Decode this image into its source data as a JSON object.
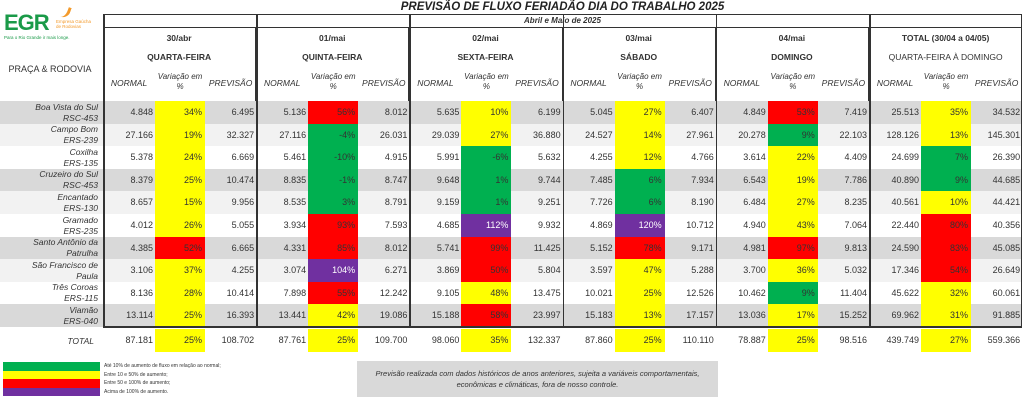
{
  "logo": {
    "name": "EGR",
    "subtitle": "Empresa Gaúcha de Rodovias",
    "tagline": "Para o Rio Grande ir mais longe."
  },
  "title": "PREVISÃO DE FLUXO FERIADÃO DIA DO TRABALHO 2025",
  "period": "Abril e Maio de 2025",
  "row_header": "PRAÇA & RODOVIA",
  "subheaders": {
    "normal": "NORMAL",
    "variation": "Variação em %",
    "forecast": "PREVISÃO"
  },
  "groups": [
    {
      "date": "30/abr",
      "weekday": "QUARTA-FEIRA"
    },
    {
      "date": "01/mai",
      "weekday": "QUINTA-FEIRA"
    },
    {
      "date": "02/mai",
      "weekday": "SEXTA-FEIRA"
    },
    {
      "date": "03/mai",
      "weekday": "SÁBADO"
    },
    {
      "date": "04/mai",
      "weekday": "DOMINGO"
    },
    {
      "date": "TOTAL (30/04 a 04/05)",
      "weekday": "QUARTA-FEIRA À DOMINGO"
    }
  ],
  "colors": {
    "g": "#00b050",
    "y": "#ffff00",
    "r": "#ff0000",
    "p": "#7030a0"
  },
  "rows": [
    {
      "name1": "Boa Vista do Sul",
      "name2": "RSC-453",
      "cells": [
        [
          "4.848",
          "34%",
          "6.495",
          "y"
        ],
        [
          "5.136",
          "56%",
          "8.012",
          "r"
        ],
        [
          "5.635",
          "10%",
          "6.199",
          "y"
        ],
        [
          "5.045",
          "27%",
          "6.407",
          "y"
        ],
        [
          "4.849",
          "53%",
          "7.419",
          "r"
        ],
        [
          "25.513",
          "35%",
          "34.532",
          "y"
        ]
      ]
    },
    {
      "name1": "Campo Bom",
      "name2": "ERS-239",
      "cells": [
        [
          "27.166",
          "19%",
          "32.327",
          "y"
        ],
        [
          "27.116",
          "-4%",
          "26.031",
          "g"
        ],
        [
          "29.039",
          "27%",
          "36.880",
          "y"
        ],
        [
          "24.527",
          "14%",
          "27.961",
          "y"
        ],
        [
          "20.278",
          "9%",
          "22.103",
          "g"
        ],
        [
          "128.126",
          "13%",
          "145.301",
          "y"
        ]
      ]
    },
    {
      "name1": "Coxilha",
      "name2": "ERS-135",
      "cells": [
        [
          "5.378",
          "24%",
          "6.669",
          "y"
        ],
        [
          "5.461",
          "-10%",
          "4.915",
          "g"
        ],
        [
          "5.991",
          "-6%",
          "5.632",
          "g"
        ],
        [
          "4.255",
          "12%",
          "4.766",
          "y"
        ],
        [
          "3.614",
          "22%",
          "4.409",
          "y"
        ],
        [
          "24.699",
          "7%",
          "26.390",
          "g"
        ]
      ]
    },
    {
      "name1": "Cruzeiro do Sul",
      "name2": "RSC-453",
      "cells": [
        [
          "8.379",
          "25%",
          "10.474",
          "y"
        ],
        [
          "8.835",
          "-1%",
          "8.747",
          "g"
        ],
        [
          "9.648",
          "1%",
          "9.744",
          "g"
        ],
        [
          "7.485",
          "6%",
          "7.934",
          "g"
        ],
        [
          "6.543",
          "19%",
          "7.786",
          "y"
        ],
        [
          "40.890",
          "9%",
          "44.685",
          "g"
        ]
      ]
    },
    {
      "name1": "Encantado",
      "name2": "ERS-130",
      "cells": [
        [
          "8.657",
          "15%",
          "9.956",
          "y"
        ],
        [
          "8.535",
          "3%",
          "8.791",
          "g"
        ],
        [
          "9.159",
          "1%",
          "9.251",
          "g"
        ],
        [
          "7.726",
          "6%",
          "8.190",
          "g"
        ],
        [
          "6.484",
          "27%",
          "8.235",
          "y"
        ],
        [
          "40.561",
          "10%",
          "44.421",
          "y"
        ]
      ]
    },
    {
      "name1": "Gramado",
      "name2": "ERS-235",
      "cells": [
        [
          "4.012",
          "26%",
          "5.055",
          "y"
        ],
        [
          "3.934",
          "93%",
          "7.593",
          "r"
        ],
        [
          "4.685",
          "112%",
          "9.932",
          "p"
        ],
        [
          "4.869",
          "120%",
          "10.712",
          "p"
        ],
        [
          "4.940",
          "43%",
          "7.064",
          "y"
        ],
        [
          "22.440",
          "80%",
          "40.356",
          "r"
        ]
      ]
    },
    {
      "name1": "Santo Antônio da",
      "name2": "Patrulha",
      "cells": [
        [
          "4.385",
          "52%",
          "6.665",
          "r"
        ],
        [
          "4.331",
          "85%",
          "8.012",
          "r"
        ],
        [
          "5.741",
          "99%",
          "11.425",
          "r"
        ],
        [
          "5.152",
          "78%",
          "9.171",
          "r"
        ],
        [
          "4.981",
          "97%",
          "9.813",
          "r"
        ],
        [
          "24.590",
          "83%",
          "45.085",
          "r"
        ]
      ]
    },
    {
      "name1": "São Francisco de",
      "name2": "Paula",
      "cells": [
        [
          "3.106",
          "37%",
          "4.255",
          "y"
        ],
        [
          "3.074",
          "104%",
          "6.271",
          "p"
        ],
        [
          "3.869",
          "50%",
          "5.804",
          "r"
        ],
        [
          "3.597",
          "47%",
          "5.288",
          "y"
        ],
        [
          "3.700",
          "36%",
          "5.032",
          "y"
        ],
        [
          "17.346",
          "54%",
          "26.649",
          "r"
        ]
      ]
    },
    {
      "name1": "Três Coroas",
      "name2": "ERS-115",
      "cells": [
        [
          "8.136",
          "28%",
          "10.414",
          "y"
        ],
        [
          "7.898",
          "55%",
          "12.242",
          "r"
        ],
        [
          "9.105",
          "48%",
          "13.475",
          "y"
        ],
        [
          "10.021",
          "25%",
          "12.526",
          "y"
        ],
        [
          "10.462",
          "9%",
          "11.404",
          "g"
        ],
        [
          "45.622",
          "32%",
          "60.061",
          "y"
        ]
      ]
    },
    {
      "name1": "Viamão",
      "name2": "ERS-040",
      "cells": [
        [
          "13.114",
          "25%",
          "16.393",
          "y"
        ],
        [
          "13.441",
          "42%",
          "19.086",
          "y"
        ],
        [
          "15.188",
          "58%",
          "23.997",
          "r"
        ],
        [
          "15.183",
          "13%",
          "17.157",
          "y"
        ],
        [
          "13.036",
          "17%",
          "15.252",
          "y"
        ],
        [
          "69.962",
          "31%",
          "91.885",
          "y"
        ]
      ]
    }
  ],
  "total": {
    "label": "TOTAL",
    "cells": [
      [
        "87.181",
        "25%",
        "108.702",
        "y"
      ],
      [
        "87.761",
        "25%",
        "109.700",
        "y"
      ],
      [
        "98.060",
        "35%",
        "132.337",
        "y"
      ],
      [
        "87.860",
        "25%",
        "110.110",
        "y"
      ],
      [
        "78.887",
        "25%",
        "98.516",
        "y"
      ],
      [
        "439.749",
        "27%",
        "559.366",
        "y"
      ]
    ]
  },
  "legend": [
    {
      "color": "g",
      "text": "Até 10% de aumento de fluxo em relação ao normal;"
    },
    {
      "color": "y",
      "text": "Entre 10 e 50% de aumento;"
    },
    {
      "color": "r",
      "text": "Entre 50 e 100% de aumento;"
    },
    {
      "color": "p",
      "text": "Acima de 100% de aumento."
    }
  ],
  "note": "Previsão realizada com dados históricos de anos anteriores, sujeita a variáveis comportamentais, econômicas e climáticas, fora de nosso controle."
}
